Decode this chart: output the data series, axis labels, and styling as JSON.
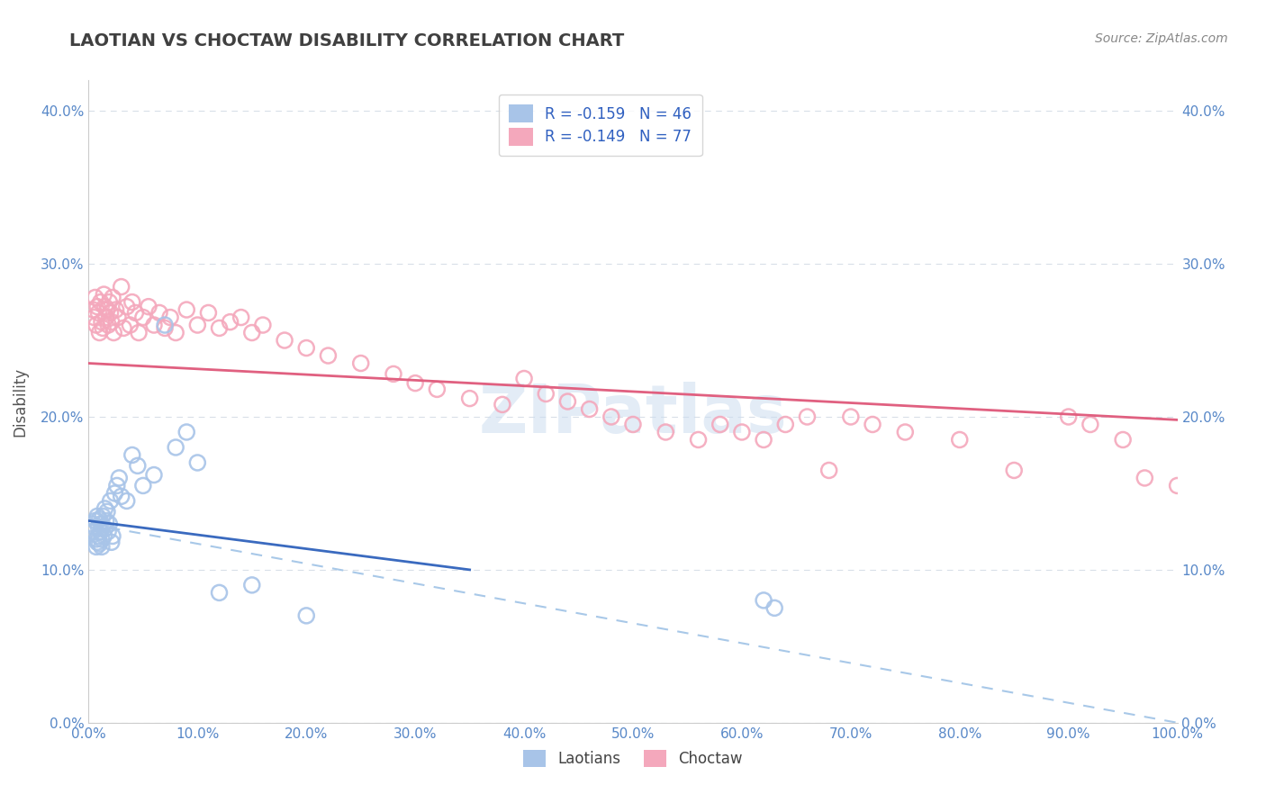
{
  "title": "LAOTIAN VS CHOCTAW DISABILITY CORRELATION CHART",
  "source": "Source: ZipAtlas.com",
  "ylabel": "Disability",
  "watermark": "ZIPatlas",
  "legend_laotian": "R = -0.159   N = 46",
  "legend_choctaw": "R = -0.149   N = 77",
  "laotian_color": "#a8c4e8",
  "choctaw_color": "#f4a8bc",
  "laotian_line_color": "#3a6abf",
  "choctaw_line_color": "#e06080",
  "dashed_line_color": "#a8c8e8",
  "background_color": "#ffffff",
  "grid_color": "#d8dfe8",
  "xlim": [
    0.0,
    1.0
  ],
  "ylim": [
    0.0,
    0.42
  ],
  "xticks": [
    0.0,
    0.1,
    0.2,
    0.3,
    0.4,
    0.5,
    0.6,
    0.7,
    0.8,
    0.9,
    1.0
  ],
  "yticks": [
    0.0,
    0.1,
    0.2,
    0.3,
    0.4
  ],
  "xtick_labels": [
    "0.0%",
    "10.0%",
    "20.0%",
    "30.0%",
    "40.0%",
    "50.0%",
    "60.0%",
    "70.0%",
    "80.0%",
    "90.0%",
    "100.0%"
  ],
  "ytick_labels": [
    "0.0%",
    "10.0%",
    "20.0%",
    "30.0%",
    "40.0%"
  ],
  "laotian_x": [
    0.003,
    0.004,
    0.005,
    0.006,
    0.007,
    0.007,
    0.008,
    0.008,
    0.009,
    0.009,
    0.01,
    0.01,
    0.011,
    0.011,
    0.012,
    0.012,
    0.013,
    0.013,
    0.014,
    0.015,
    0.015,
    0.016,
    0.017,
    0.018,
    0.019,
    0.02,
    0.021,
    0.022,
    0.024,
    0.026,
    0.028,
    0.03,
    0.035,
    0.04,
    0.045,
    0.05,
    0.06,
    0.07,
    0.08,
    0.09,
    0.1,
    0.12,
    0.15,
    0.2,
    0.62,
    0.63
  ],
  "laotian_y": [
    0.13,
    0.125,
    0.128,
    0.132,
    0.115,
    0.12,
    0.135,
    0.118,
    0.122,
    0.128,
    0.133,
    0.117,
    0.125,
    0.13,
    0.12,
    0.115,
    0.128,
    0.135,
    0.122,
    0.127,
    0.14,
    0.132,
    0.138,
    0.125,
    0.13,
    0.145,
    0.118,
    0.122,
    0.15,
    0.155,
    0.16,
    0.148,
    0.145,
    0.175,
    0.168,
    0.155,
    0.162,
    0.26,
    0.18,
    0.19,
    0.17,
    0.085,
    0.09,
    0.07,
    0.08,
    0.075
  ],
  "choctaw_x": [
    0.004,
    0.005,
    0.006,
    0.007,
    0.008,
    0.009,
    0.01,
    0.011,
    0.012,
    0.013,
    0.014,
    0.015,
    0.016,
    0.017,
    0.018,
    0.019,
    0.02,
    0.021,
    0.022,
    0.023,
    0.025,
    0.027,
    0.03,
    0.032,
    0.035,
    0.038,
    0.04,
    0.043,
    0.046,
    0.05,
    0.055,
    0.06,
    0.065,
    0.07,
    0.075,
    0.08,
    0.09,
    0.1,
    0.11,
    0.12,
    0.13,
    0.14,
    0.15,
    0.16,
    0.18,
    0.2,
    0.22,
    0.25,
    0.28,
    0.3,
    0.32,
    0.35,
    0.38,
    0.4,
    0.42,
    0.44,
    0.46,
    0.48,
    0.5,
    0.53,
    0.56,
    0.58,
    0.6,
    0.62,
    0.64,
    0.66,
    0.68,
    0.7,
    0.72,
    0.75,
    0.8,
    0.85,
    0.9,
    0.92,
    0.95,
    0.97,
    1.0
  ],
  "choctaw_y": [
    0.27,
    0.265,
    0.278,
    0.26,
    0.272,
    0.268,
    0.255,
    0.275,
    0.262,
    0.258,
    0.28,
    0.272,
    0.265,
    0.27,
    0.26,
    0.275,
    0.268,
    0.262,
    0.278,
    0.255,
    0.27,
    0.265,
    0.285,
    0.258,
    0.272,
    0.26,
    0.275,
    0.268,
    0.255,
    0.265,
    0.272,
    0.26,
    0.268,
    0.258,
    0.265,
    0.255,
    0.27,
    0.26,
    0.268,
    0.258,
    0.262,
    0.265,
    0.255,
    0.26,
    0.25,
    0.245,
    0.24,
    0.235,
    0.228,
    0.222,
    0.218,
    0.212,
    0.208,
    0.225,
    0.215,
    0.21,
    0.205,
    0.2,
    0.195,
    0.19,
    0.185,
    0.195,
    0.19,
    0.185,
    0.195,
    0.2,
    0.165,
    0.2,
    0.195,
    0.19,
    0.185,
    0.165,
    0.2,
    0.195,
    0.185,
    0.16,
    0.155
  ],
  "lao_line_x": [
    0.0,
    0.35
  ],
  "lao_line_y": [
    0.132,
    0.1
  ],
  "cho_line_x": [
    0.0,
    1.0
  ],
  "cho_line_y": [
    0.235,
    0.198
  ],
  "dash_line_x": [
    0.0,
    1.0
  ],
  "dash_line_y": [
    0.13,
    0.0
  ]
}
